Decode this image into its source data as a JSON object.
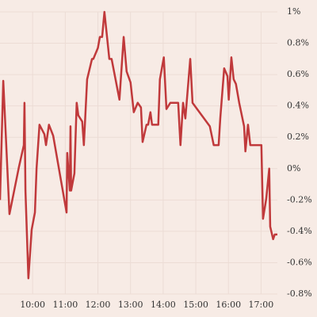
{
  "chart_data": {
    "type": "line",
    "x": [
      9.0,
      9.1,
      9.29,
      9.58,
      9.73,
      9.75,
      9.78,
      9.87,
      9.97,
      10.07,
      10.12,
      10.21,
      10.36,
      10.41,
      10.5,
      10.63,
      11.04,
      11.06,
      11.14,
      11.16,
      11.18,
      11.28,
      11.35,
      11.4,
      11.52,
      11.57,
      11.67,
      11.82,
      11.86,
      12.0,
      12.06,
      12.13,
      12.2,
      12.35,
      12.42,
      12.54,
      12.66,
      12.79,
      12.88,
      13.0,
      13.1,
      13.22,
      13.32,
      13.37,
      13.49,
      13.54,
      13.61,
      13.66,
      13.85,
      13.9,
      14.02,
      14.1,
      14.22,
      14.46,
      14.53,
      14.61,
      14.68,
      14.83,
      14.9,
      15.43,
      15.55,
      15.7,
      15.75,
      15.87,
      15.97,
      16.01,
      16.09,
      16.16,
      16.23,
      16.33,
      16.48,
      16.52,
      16.6,
      16.67,
      16.77,
      17.01,
      17.06,
      17.16,
      17.25,
      17.28,
      17.37,
      17.42,
      17.5
    ],
    "series": [
      {
        "color": "#c0393b",
        "values": [
          -0.2,
          0.56,
          -0.29,
          0.01,
          0.15,
          0.42,
          -0.14,
          -0.7,
          -0.39,
          -0.28,
          0.0,
          0.28,
          0.22,
          0.15,
          0.28,
          0.21,
          -0.28,
          0.1,
          -0.14,
          0.27,
          -0.14,
          -0.03,
          0.42,
          0.34,
          0.3,
          0.15,
          0.57,
          0.7,
          0.7,
          0.77,
          0.84,
          0.84,
          1.0,
          0.7,
          0.7,
          0.57,
          0.44,
          0.84,
          0.62,
          0.55,
          0.36,
          0.42,
          0.39,
          0.17,
          0.28,
          0.28,
          0.36,
          0.28,
          0.28,
          0.57,
          0.71,
          0.38,
          0.42,
          0.42,
          0.15,
          0.42,
          0.32,
          0.7,
          0.42,
          0.27,
          0.15,
          0.15,
          0.32,
          0.64,
          0.59,
          0.44,
          0.71,
          0.57,
          0.54,
          0.42,
          0.27,
          0.11,
          0.28,
          0.15,
          0.15,
          0.15,
          -0.32,
          -0.19,
          0.0,
          -0.37,
          -0.45,
          -0.42,
          -0.42
        ]
      }
    ],
    "xlim": [
      9.0,
      17.5
    ],
    "xticks": [
      {
        "value": 10,
        "label": "10:00"
      },
      {
        "value": 11,
        "label": "11:00"
      },
      {
        "value": 12,
        "label": "12:00"
      },
      {
        "value": 13,
        "label": "13:00"
      },
      {
        "value": 14,
        "label": "14:00"
      },
      {
        "value": 15,
        "label": "15:00"
      },
      {
        "value": 16,
        "label": "16:00"
      },
      {
        "value": 17,
        "label": "17:00"
      }
    ],
    "ylim": [
      -0.8,
      1.0
    ],
    "yticks": [
      {
        "value": -0.8,
        "label": "-0.8%"
      },
      {
        "value": -0.6,
        "label": "-0.6%"
      },
      {
        "value": -0.4,
        "label": "-0.4%"
      },
      {
        "value": -0.2,
        "label": "-0.2%"
      },
      {
        "value": 0,
        "label": "0%"
      },
      {
        "value": 0.2,
        "label": "0.2%"
      },
      {
        "value": 0.4,
        "label": "0.4%"
      },
      {
        "value": 0.6,
        "label": "0.6%"
      },
      {
        "value": 0.8,
        "label": "0.8%"
      },
      {
        "value": 1.0,
        "label": "1%"
      }
    ],
    "grid": true
  }
}
